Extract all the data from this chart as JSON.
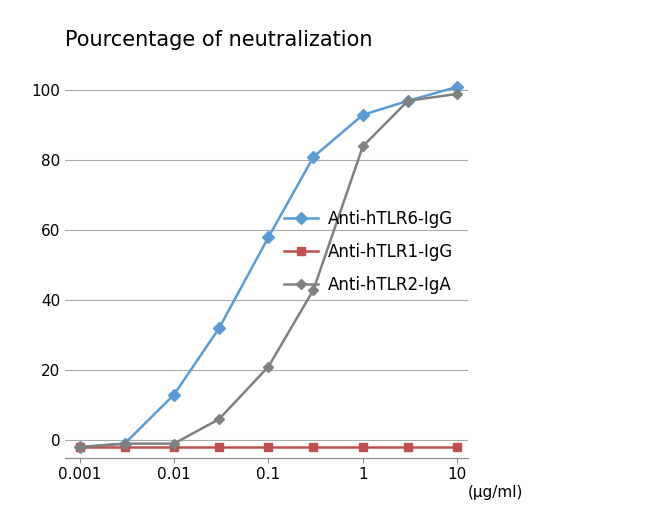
{
  "title": "Pourcentage of neutralization",
  "xlabel": "(μg/ml)",
  "ylim": [
    -5,
    108
  ],
  "yticks": [
    0,
    20,
    40,
    60,
    80,
    100
  ],
  "xticks": [
    0.001,
    0.01,
    0.1,
    1,
    10
  ],
  "xtick_labels": [
    "0.001",
    "0.01",
    "0.1",
    "1",
    "10"
  ],
  "background_color": "#ffffff",
  "series": [
    {
      "label": "Anti-hTLR6-IgG",
      "color": "#5B9BD5",
      "marker": "D",
      "marker_size": 6,
      "x": [
        0.001,
        0.003,
        0.01,
        0.03,
        0.1,
        0.3,
        1,
        3,
        10
      ],
      "y": [
        -2,
        -1,
        13,
        32,
        58,
        81,
        93,
        97,
        101
      ]
    },
    {
      "label": "Anti-hTLR1-IgG",
      "color": "#C0504D",
      "marker": "s",
      "marker_size": 6,
      "x": [
        0.001,
        0.003,
        0.01,
        0.03,
        0.1,
        0.3,
        1,
        3,
        10
      ],
      "y": [
        -2,
        -2,
        -2,
        -2,
        -2,
        -2,
        -2,
        -2,
        -2
      ]
    },
    {
      "label": "Anti-hTLR2-IgA",
      "color": "#808080",
      "marker": "D",
      "marker_size": 5,
      "x": [
        0.001,
        0.003,
        0.01,
        0.03,
        0.1,
        0.3,
        1,
        3,
        10
      ],
      "y": [
        -2,
        -1,
        -1,
        6,
        21,
        43,
        84,
        97,
        99
      ]
    }
  ],
  "title_fontsize": 15,
  "tick_fontsize": 11,
  "legend_fontsize": 12,
  "grid_color": "#aaaaaa",
  "grid_linewidth": 0.8,
  "line_width": 1.8
}
